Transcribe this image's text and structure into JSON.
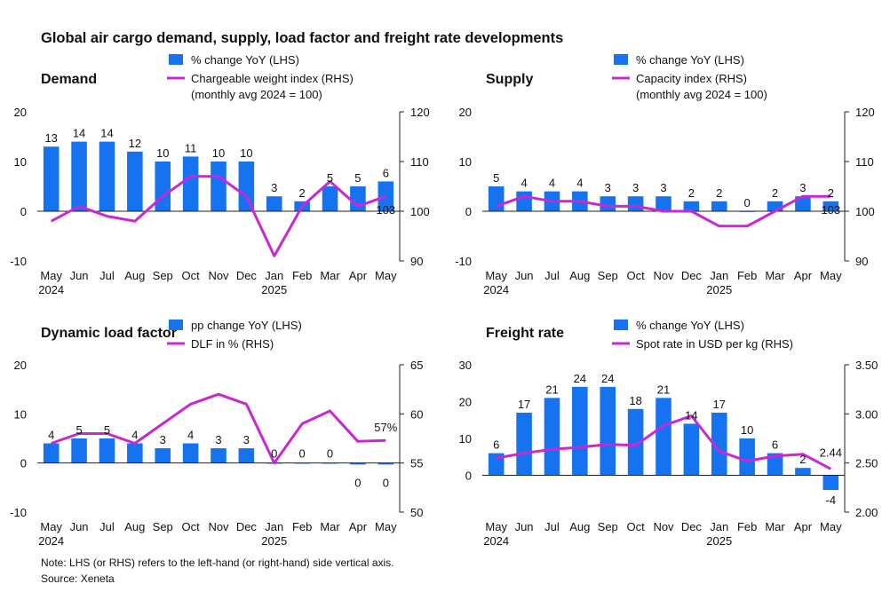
{
  "title": "Global air cargo demand, supply, load factor and freight rate developments",
  "footnote": {
    "note": "Note: LHS (or RHS) refers to the left-hand (or right-hand) side vertical axis.",
    "source": "Source: Xeneta"
  },
  "colors": {
    "bar": "#1673f0",
    "line": "#c828d4",
    "text": "#111111",
    "axis": "#222222"
  },
  "chart_data": [
    {
      "type": "bar+line",
      "title": "Demand",
      "categories": [
        "May",
        "Jun",
        "Jul",
        "Aug",
        "Sep",
        "Oct",
        "Nov",
        "Dec",
        "Jan",
        "Feb",
        "Mar",
        "Apr",
        "May"
      ],
      "year_labels": [
        {
          "index": 0,
          "label": "2024"
        },
        {
          "index": 8,
          "label": "2025"
        }
      ],
      "left_axis": {
        "min": -10,
        "max": 20,
        "ticks": [
          "-10",
          "0",
          "10",
          "20"
        ]
      },
      "right_axis": {
        "min": 90,
        "max": 120,
        "ticks": [
          "90",
          "100",
          "110",
          "120"
        ]
      },
      "series": [
        {
          "name": "% change YoY (LHS)",
          "type": "bar",
          "axis": "left",
          "values": [
            13,
            14,
            14,
            12,
            10,
            11,
            10,
            10,
            3,
            2,
            5,
            5,
            6
          ],
          "labels": [
            "13",
            "14",
            "14",
            "12",
            "10",
            "11",
            "10",
            "10",
            "3",
            "2",
            "5",
            "5",
            "6"
          ]
        },
        {
          "name": "Chargeable weight index (RHS)",
          "legend_sub": "(monthly avg 2024 = 100)",
          "type": "line",
          "axis": "right",
          "values": [
            98,
            101,
            99,
            98,
            103,
            107,
            107,
            103,
            91,
            101,
            106,
            101,
            103
          ],
          "end_label": "103"
        }
      ]
    },
    {
      "type": "bar+line",
      "title": "Supply",
      "categories": [
        "May",
        "Jun",
        "Jul",
        "Aug",
        "Sep",
        "Oct",
        "Nov",
        "Dec",
        "Jan",
        "Feb",
        "Mar",
        "Apr",
        "May"
      ],
      "year_labels": [
        {
          "index": 0,
          "label": "2024"
        },
        {
          "index": 8,
          "label": "2025"
        }
      ],
      "left_axis": {
        "min": -10,
        "max": 20,
        "ticks": [
          "-10",
          "0",
          "10",
          "20"
        ]
      },
      "right_axis": {
        "min": 90,
        "max": 120,
        "ticks": [
          "90",
          "100",
          "110",
          "120"
        ]
      },
      "series": [
        {
          "name": "% change YoY (LHS)",
          "type": "bar",
          "axis": "left",
          "values": [
            5,
            4,
            4,
            4,
            3,
            3,
            3,
            2,
            2,
            0,
            2,
            3,
            2
          ],
          "labels": [
            "5",
            "4",
            "4",
            "4",
            "3",
            "3",
            "3",
            "2",
            "2",
            "0",
            "2",
            "3",
            "2"
          ]
        },
        {
          "name": "Capacity index (RHS)",
          "legend_sub": "(monthly avg 2024 = 100)",
          "type": "line",
          "axis": "right",
          "values": [
            101,
            103,
            102,
            102,
            101,
            101,
            100,
            100,
            97,
            97,
            100,
            103,
            103
          ],
          "end_label": "103"
        }
      ]
    },
    {
      "type": "bar+line",
      "title": "Dynamic load factor",
      "categories": [
        "May",
        "Jun",
        "Jul",
        "Aug",
        "Sep",
        "Oct",
        "Nov",
        "Dec",
        "Jan",
        "Feb",
        "Mar",
        "Apr",
        "May"
      ],
      "year_labels": [
        {
          "index": 0,
          "label": "2024"
        },
        {
          "index": 8,
          "label": "2025"
        }
      ],
      "left_axis": {
        "min": -10,
        "max": 20,
        "ticks": [
          "-10",
          "0",
          "10",
          "20"
        ]
      },
      "right_axis": {
        "min": 50,
        "max": 65,
        "ticks": [
          "50",
          "55",
          "60",
          "65"
        ]
      },
      "series": [
        {
          "name": "pp change YoY (LHS)",
          "type": "bar",
          "axis": "left",
          "values": [
            4,
            5,
            5,
            4,
            3,
            4,
            3,
            3,
            0,
            0,
            0,
            -0.3,
            -0.3
          ],
          "labels": [
            "4",
            "5",
            "5",
            "4",
            "3",
            "4",
            "3",
            "3",
            "0",
            "0",
            "0",
            "0",
            "0"
          ]
        },
        {
          "name": "DLF in % (RHS)",
          "type": "line",
          "axis": "right",
          "values": [
            57,
            58,
            58,
            57,
            59,
            61,
            62,
            61,
            55,
            59,
            60.3,
            57.2,
            57.3
          ],
          "end_label": "57%"
        }
      ]
    },
    {
      "type": "bar+line",
      "title": "Freight rate",
      "categories": [
        "May",
        "Jun",
        "Jul",
        "Aug",
        "Sep",
        "Oct",
        "Nov",
        "Dec",
        "Jan",
        "Feb",
        "Mar",
        "Apr",
        "May"
      ],
      "year_labels": [
        {
          "index": 0,
          "label": "2024"
        },
        {
          "index": 8,
          "label": "2025"
        }
      ],
      "left_axis": {
        "min": -10,
        "max": 30,
        "ticks": [
          "0",
          "10",
          "20",
          "30"
        ]
      },
      "right_axis": {
        "min": 2.0,
        "max": 3.5,
        "ticks": [
          "2.00",
          "2.50",
          "3.00",
          "3.50"
        ]
      },
      "series": [
        {
          "name": "% change YoY (LHS)",
          "type": "bar",
          "axis": "left",
          "values": [
            6,
            17,
            21,
            24,
            24,
            18,
            21,
            14,
            17,
            10,
            6,
            2,
            -4
          ],
          "labels": [
            "6",
            "17",
            "21",
            "24",
            "24",
            "18",
            "21",
            "14",
            "17",
            "10",
            "6",
            "2",
            "-4"
          ]
        },
        {
          "name": "Spot rate in USD per kg (RHS)",
          "type": "line",
          "axis": "right",
          "values": [
            2.55,
            2.6,
            2.64,
            2.66,
            2.69,
            2.68,
            2.88,
            2.98,
            2.62,
            2.52,
            2.57,
            2.59,
            2.44
          ],
          "end_label": "2.44"
        }
      ]
    }
  ]
}
